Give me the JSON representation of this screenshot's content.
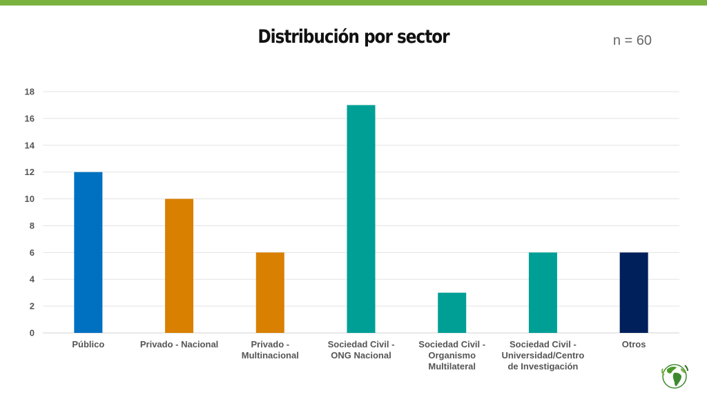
{
  "title": "Distribución por sector",
  "sample_size": "n = 60",
  "colors": {
    "top_bar": "#7ab23f",
    "publico": "#0070c0",
    "privado": "#d98000",
    "sociedad_civil": "#009f96",
    "otros": "#00205b",
    "grid": "#e3e3e3"
  },
  "icons": {
    "logo": "globe-icon"
  },
  "chart_data": {
    "type": "bar",
    "title": "Distribución por sector",
    "categories": [
      "Público",
      "Privado - Nacional",
      "Privado - Multinacional",
      "Sociedad Civil - ONG Nacional",
      "Sociedad Civil - Organismo Multilateral",
      "Sociedad Civil - Universidad/Centro de Investigación",
      "Otros"
    ],
    "category_lines": [
      [
        "Público"
      ],
      [
        "Privado - Nacional"
      ],
      [
        "Privado -",
        "Multinacional"
      ],
      [
        "Sociedad Civil -",
        "ONG Nacional"
      ],
      [
        "Sociedad Civil -",
        "Organismo",
        "Multilateral"
      ],
      [
        "Sociedad Civil -",
        "Universidad/Centro",
        "de Investigación"
      ],
      [
        "Otros"
      ]
    ],
    "values": [
      12,
      10,
      6,
      17,
      3,
      6,
      6
    ],
    "bar_colors": [
      "#0070c0",
      "#d98000",
      "#d98000",
      "#009f96",
      "#009f96",
      "#009f96",
      "#00205b"
    ],
    "ylim": [
      0,
      18
    ],
    "yticks": [
      0,
      2,
      4,
      6,
      8,
      10,
      12,
      14,
      16,
      18
    ],
    "grid": true,
    "legend": "none",
    "xlabel": "",
    "ylabel": ""
  }
}
